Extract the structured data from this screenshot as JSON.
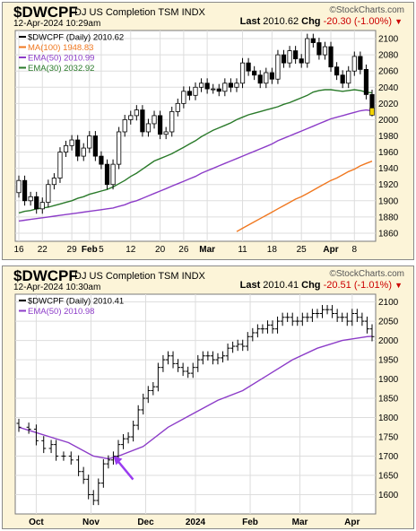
{
  "brand": "©StockCharts.com",
  "chart_data": [
    {
      "type": "candlestick",
      "symbol": "$DWCPF",
      "description": "DJ US Completion TSM INDX",
      "date": "12-Apr-2024 10:29am",
      "last_label": "Last",
      "last_value": "2010.62",
      "chg_label": "Chg",
      "chg_value": "-20.30 (-1.00%)",
      "legend": [
        {
          "label": "$DWCPF (Daily) 2010.62",
          "color": "#000000"
        },
        {
          "label": "MA(100) 1948.83",
          "color": "#f07820"
        },
        {
          "label": "EMA(50) 2010.99",
          "color": "#8c3cc8"
        },
        {
          "label": "EMA(30) 2032.92",
          "color": "#2a7a2a"
        }
      ],
      "ylim": [
        1850,
        2110
      ],
      "yticks": [
        1860,
        1880,
        1900,
        1920,
        1940,
        1960,
        1980,
        2000,
        2020,
        2040,
        2060,
        2080,
        2100
      ],
      "xticks": [
        {
          "label": "16",
          "i": 0
        },
        {
          "label": "22",
          "i": 4
        },
        {
          "label": "29",
          "i": 9
        },
        {
          "label": "Feb",
          "i": 12
        },
        {
          "label": "5",
          "i": 14
        },
        {
          "label": "12",
          "i": 19
        },
        {
          "label": "20",
          "i": 24
        },
        {
          "label": "26",
          "i": 28
        },
        {
          "label": "Mar",
          "i": 32
        },
        {
          "label": "11",
          "i": 38
        },
        {
          "label": "18",
          "i": 43
        },
        {
          "label": "25",
          "i": 48
        },
        {
          "label": "Apr",
          "i": 53
        },
        {
          "label": "8",
          "i": 57
        }
      ],
      "close": [
        1925,
        1900,
        1905,
        1890,
        1898,
        1920,
        1928,
        1960,
        1968,
        1975,
        1955,
        1965,
        1980,
        1955,
        1945,
        1920,
        1945,
        1985,
        2000,
        2005,
        2012,
        1985,
        1995,
        2005,
        1982,
        1985,
        2010,
        2020,
        2035,
        2030,
        2040,
        2045,
        2038,
        2038,
        2035,
        2045,
        2040,
        2045,
        2070,
        2060,
        2055,
        2045,
        2058,
        2050,
        2080,
        2070,
        2085,
        2075,
        2070,
        2100,
        2095,
        2080,
        2090,
        2065,
        2055,
        2045,
        2060,
        2078,
        2062,
        2031,
        2010
      ],
      "ma100": [
        null,
        null,
        null,
        null,
        null,
        null,
        null,
        null,
        null,
        null,
        null,
        null,
        null,
        null,
        null,
        null,
        null,
        null,
        null,
        null,
        null,
        null,
        null,
        null,
        null,
        null,
        null,
        null,
        null,
        null,
        null,
        null,
        null,
        null,
        null,
        null,
        null,
        1862,
        1866,
        1870,
        1874,
        1878,
        1882,
        1886,
        1890,
        1894,
        1898,
        1902,
        1905,
        1909,
        1913,
        1917,
        1921,
        1925,
        1928,
        1932,
        1936,
        1939,
        1943,
        1946,
        1948.8
      ],
      "ema50": [
        1875,
        1876,
        1877,
        1878,
        1879,
        1880,
        1881,
        1882,
        1883,
        1884,
        1885,
        1886,
        1887,
        1888,
        1889,
        1890,
        1891,
        1893,
        1895,
        1898,
        1900,
        1903,
        1906,
        1909,
        1912,
        1915,
        1918,
        1921,
        1924,
        1927,
        1930,
        1934,
        1937,
        1940,
        1943,
        1946,
        1949,
        1952,
        1955,
        1958,
        1961,
        1964,
        1967,
        1970,
        1974,
        1977,
        1980,
        1983,
        1986,
        1989,
        1992,
        1995,
        1998,
        2001,
        2003,
        2005,
        2007,
        2009,
        2011,
        2012,
        2011
      ],
      "ema30": [
        1885,
        1887,
        1888,
        1890,
        1891,
        1892,
        1894,
        1896,
        1898,
        1900,
        1903,
        1905,
        1908,
        1910,
        1912,
        1914,
        1917,
        1921,
        1925,
        1930,
        1934,
        1939,
        1944,
        1949,
        1952,
        1955,
        1958,
        1962,
        1966,
        1970,
        1974,
        1979,
        1983,
        1987,
        1990,
        1993,
        1996,
        2000,
        2003,
        2006,
        2008,
        2010,
        2012,
        2014,
        2016,
        2019,
        2021,
        2024,
        2027,
        2030,
        2034,
        2036,
        2037,
        2037,
        2036,
        2035,
        2036,
        2037,
        2036,
        2034,
        2033
      ]
    },
    {
      "type": "ohlc",
      "symbol": "$DWCPF",
      "description": "DJ US Completion TSM INDX",
      "date": "12-Apr-2024 10:30am",
      "last_label": "Last",
      "last_value": "2010.41",
      "chg_label": "Chg",
      "chg_value": "-20.51 (-1.01%)",
      "legend": [
        {
          "label": "$DWCPF (Daily) 2010.41",
          "color": "#000000"
        },
        {
          "label": "EMA(50) 2010.98",
          "color": "#8c3cc8"
        }
      ],
      "ylim": [
        1550,
        2120
      ],
      "yticks": [
        1600,
        1650,
        1700,
        1750,
        1800,
        1850,
        1900,
        1950,
        2000,
        2050,
        2100
      ],
      "xticks": [
        {
          "label": "Oct",
          "i": 7
        },
        {
          "label": "Nov",
          "i": 29
        },
        {
          "label": "Dec",
          "i": 51
        },
        {
          "label": "2024",
          "i": 71
        },
        {
          "label": "Feb",
          "i": 93
        },
        {
          "label": "Mar",
          "i": 113
        },
        {
          "label": "Apr",
          "i": 134
        }
      ],
      "points": [
        [
          0,
          1775
        ],
        [
          4,
          1770
        ],
        [
          7,
          1740
        ],
        [
          10,
          1720
        ],
        [
          13,
          1730
        ],
        [
          15,
          1700
        ],
        [
          18,
          1700
        ],
        [
          21,
          1690
        ],
        [
          24,
          1660
        ],
        [
          26,
          1640
        ],
        [
          28,
          1600
        ],
        [
          30,
          1585
        ],
        [
          32,
          1630
        ],
        [
          34,
          1680
        ],
        [
          36,
          1690
        ],
        [
          38,
          1700
        ],
        [
          40,
          1730
        ],
        [
          42,
          1745
        ],
        [
          44,
          1750
        ],
        [
          46,
          1780
        ],
        [
          48,
          1820
        ],
        [
          50,
          1850
        ],
        [
          52,
          1870
        ],
        [
          54,
          1880
        ],
        [
          56,
          1930
        ],
        [
          58,
          1950
        ],
        [
          60,
          1960
        ],
        [
          62,
          1940
        ],
        [
          64,
          1930
        ],
        [
          66,
          1920
        ],
        [
          68,
          1915
        ],
        [
          70,
          1930
        ],
        [
          72,
          1950
        ],
        [
          74,
          1960
        ],
        [
          76,
          1960
        ],
        [
          78,
          1950
        ],
        [
          80,
          1955
        ],
        [
          82,
          1960
        ],
        [
          84,
          1980
        ],
        [
          86,
          1985
        ],
        [
          88,
          1990
        ],
        [
          90,
          1985
        ],
        [
          92,
          2010
        ],
        [
          94,
          2020
        ],
        [
          96,
          2030
        ],
        [
          98,
          2030
        ],
        [
          100,
          2040
        ],
        [
          102,
          2030
        ],
        [
          104,
          2050
        ],
        [
          106,
          2060
        ],
        [
          108,
          2060
        ],
        [
          110,
          2050
        ],
        [
          112,
          2050
        ],
        [
          114,
          2060
        ],
        [
          116,
          2060
        ],
        [
          118,
          2070
        ],
        [
          120,
          2070
        ],
        [
          122,
          2080
        ],
        [
          124,
          2080
        ],
        [
          126,
          2070
        ],
        [
          128,
          2060
        ],
        [
          130,
          2060
        ],
        [
          132,
          2050
        ],
        [
          134,
          2070
        ],
        [
          136,
          2060
        ],
        [
          138,
          2050
        ],
        [
          140,
          2030
        ],
        [
          142,
          2010
        ]
      ],
      "ema50": [
        [
          0,
          1775
        ],
        [
          20,
          1735
        ],
        [
          30,
          1700
        ],
        [
          36,
          1693
        ],
        [
          40,
          1700
        ],
        [
          50,
          1725
        ],
        [
          60,
          1775
        ],
        [
          70,
          1810
        ],
        [
          80,
          1845
        ],
        [
          90,
          1870
        ],
        [
          100,
          1910
        ],
        [
          110,
          1950
        ],
        [
          120,
          1980
        ],
        [
          130,
          2000
        ],
        [
          140,
          2010
        ],
        [
          142,
          2011
        ]
      ],
      "annotation": {
        "type": "arrow",
        "color": "#9a3cf0",
        "x_index": 38,
        "y_value": 1700
      }
    }
  ]
}
